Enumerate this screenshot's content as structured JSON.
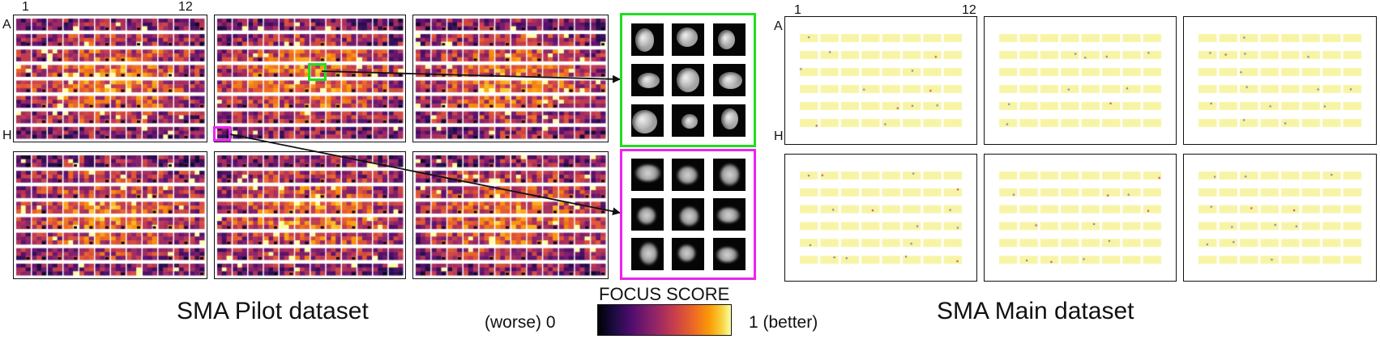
{
  "pilot": {
    "title": "SMA Pilot dataset",
    "col_first": "1",
    "col_last": "12",
    "row_first": "A",
    "row_last": "H"
  },
  "main": {
    "title": "SMA Main dataset",
    "col_first": "1",
    "col_last": "12",
    "row_first": "A",
    "row_last": "H"
  },
  "colorbar": {
    "title": "FOCUS SCORE",
    "min_label": "(worse) 0",
    "max_label": "1 (better)",
    "colormap": "inferno"
  },
  "highlights": {
    "good_color": "#22dd22",
    "bad_color": "#ee22ee"
  }
}
